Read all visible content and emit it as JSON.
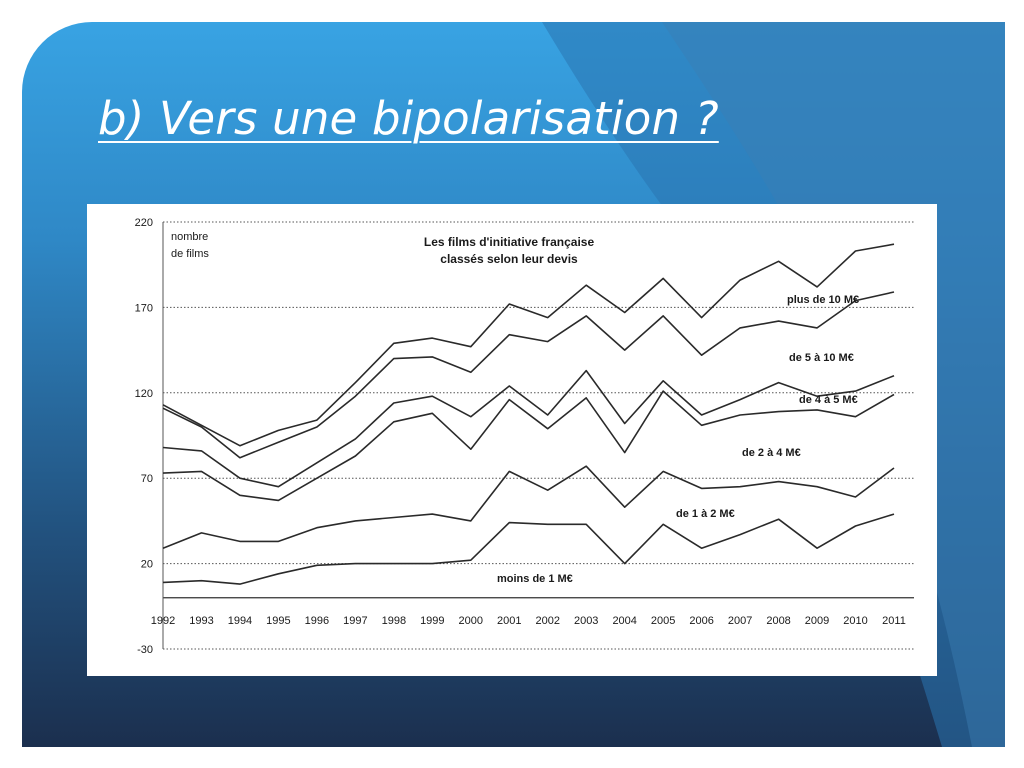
{
  "slide": {
    "title": "b) Vers une bipolarisation ?"
  },
  "chart_data": {
    "type": "line",
    "title_lines": [
      "Les films d'initiative française",
      "classés selon leur devis"
    ],
    "ylabel_lines": [
      "nombre",
      "de films"
    ],
    "ylim": [
      -30,
      220
    ],
    "yticks": [
      220,
      170,
      120,
      70,
      20,
      -30
    ],
    "x": [
      1992,
      1993,
      1994,
      1995,
      1996,
      1997,
      1998,
      1999,
      2000,
      2001,
      2002,
      2003,
      2004,
      2005,
      2006,
      2007,
      2008,
      2009,
      2010,
      2011
    ],
    "xtick_labels": [
      "1992",
      "1993",
      "1994",
      "1995",
      "1996",
      "1997",
      "1998",
      "1999",
      "2000",
      "2001",
      "2002",
      "2003",
      "2004",
      "2005",
      "2006",
      "2007",
      "2008",
      "2009",
      "2010",
      "2011"
    ],
    "series": [
      {
        "name": "moins de 1 M€",
        "values": [
          9,
          10,
          8,
          14,
          19,
          20,
          20,
          20,
          22,
          44,
          43,
          43,
          20,
          43,
          29,
          37,
          46,
          29,
          42,
          49
        ]
      },
      {
        "name": "de 1 à 2 M€",
        "values": [
          29,
          38,
          33,
          33,
          41,
          45,
          47,
          49,
          45,
          74,
          63,
          77,
          53,
          74,
          64,
          65,
          68,
          65,
          59,
          76
        ]
      },
      {
        "name": "de 2 à 4 M€",
        "values": [
          73,
          74,
          60,
          57,
          70,
          83,
          103,
          108,
          87,
          116,
          99,
          117,
          85,
          121,
          101,
          107,
          109,
          110,
          106,
          119
        ]
      },
      {
        "name": "de 4 à 5 M€",
        "values": [
          88,
          86,
          70,
          65,
          79,
          93,
          114,
          118,
          106,
          124,
          107,
          133,
          102,
          127,
          107,
          116,
          126,
          118,
          121,
          130
        ]
      },
      {
        "name": "de 5 à 10 M€",
        "values": [
          111,
          100,
          82,
          91,
          100,
          118,
          140,
          141,
          132,
          154,
          150,
          165,
          145,
          165,
          142,
          158,
          162,
          158,
          174,
          179
        ]
      },
      {
        "name": "plus de 10 M€",
        "values": [
          113,
          101,
          89,
          98,
          104,
          126,
          149,
          152,
          147,
          172,
          164,
          183,
          167,
          187,
          164,
          186,
          197,
          182,
          203,
          207
        ]
      }
    ],
    "line_color": "#2a2a2a",
    "grid": "dotted horizontal lines at y ticks",
    "series_label_placement": "in bands between lines, right side"
  }
}
